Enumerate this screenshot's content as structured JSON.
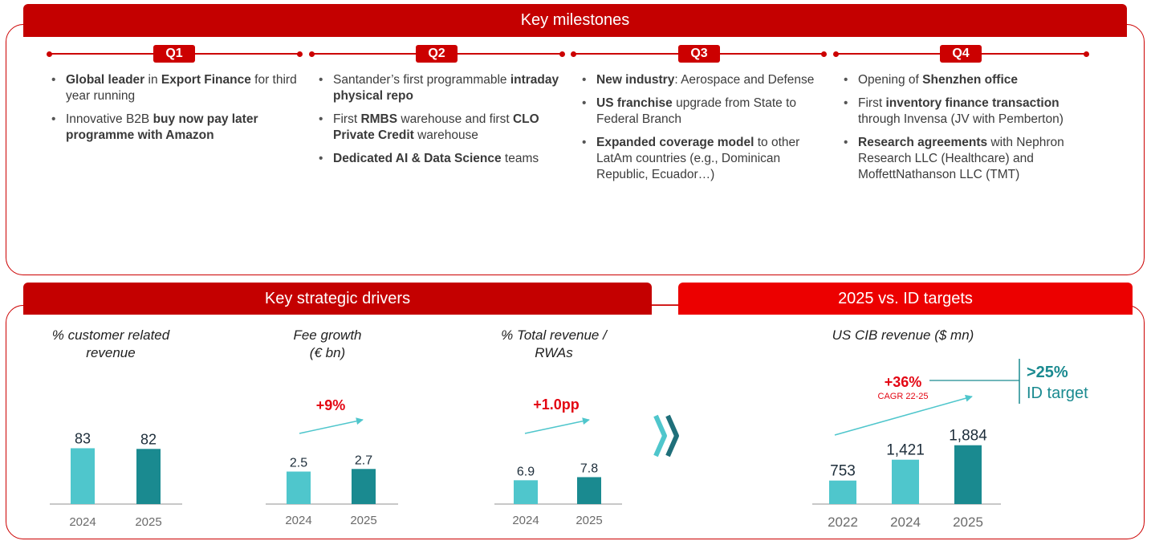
{
  "milestones": {
    "title": "Key milestones",
    "quarters": [
      {
        "label": "Q1",
        "items": [
          [
            {
              "t": "Global leader",
              "b": true
            },
            {
              "t": " in "
            },
            {
              "t": "Export Finance",
              "b": true
            },
            {
              "t": " for third year running"
            }
          ],
          [
            {
              "t": "Innovative B2B "
            },
            {
              "t": "buy now pay later programme with Amazon",
              "b": true
            }
          ]
        ]
      },
      {
        "label": "Q2",
        "items": [
          [
            {
              "t": "Santander’s first programmable "
            },
            {
              "t": "intraday physical repo",
              "b": true
            }
          ],
          [
            {
              "t": "First "
            },
            {
              "t": "RMBS",
              "b": true
            },
            {
              "t": " warehouse and first "
            },
            {
              "t": "CLO Private Credit",
              "b": true
            },
            {
              "t": " warehouse"
            }
          ],
          [
            {
              "t": "Dedicated AI & Data Science",
              "b": true
            },
            {
              "t": " teams"
            }
          ]
        ]
      },
      {
        "label": "Q3",
        "items": [
          [
            {
              "t": "New industry",
              "b": true
            },
            {
              "t": ": Aerospace and Defense"
            }
          ],
          [
            {
              "t": "US franchise",
              "b": true
            },
            {
              "t": " upgrade from State to Federal Branch"
            }
          ],
          [
            {
              "t": "Expanded coverage model",
              "b": true
            },
            {
              "t": " to other LatAm countries (e.g., Dominican Republic, Ecuador…)"
            }
          ]
        ]
      },
      {
        "label": "Q4",
        "items": [
          [
            {
              "t": "Opening of "
            },
            {
              "t": "Shenzhen office",
              "b": true
            }
          ],
          [
            {
              "t": "First "
            },
            {
              "t": "inventory finance transaction",
              "b": true
            },
            {
              "t": " through Invensa (JV with Pemberton)"
            }
          ],
          [
            {
              "t": "Research agreements",
              "b": true
            },
            {
              "t": " with Nephron Research LLC (Healthcare) and MoffettNathanson LLC (TMT)"
            }
          ]
        ]
      }
    ]
  },
  "drivers": {
    "title": "Key strategic drivers"
  },
  "targets": {
    "title": "2025 vs. ID targets"
  },
  "colors": {
    "red": "#cc0000",
    "brightRed": "#ec0000",
    "lightTeal": "#4fc6cc",
    "darkTeal": "#1a8a90",
    "arrowTeal": "#4fc6cc",
    "growthRed": "#e30613",
    "targetTeal": "#1a8a90",
    "axis": "#b5b5b5"
  },
  "chart_data": [
    {
      "type": "bar",
      "title": "% customer related revenue",
      "title_lines": [
        "% customer related",
        "revenue"
      ],
      "categories": [
        "2024",
        "2025"
      ],
      "values": [
        83,
        82
      ],
      "value_labels": [
        "83",
        "82"
      ],
      "ylim": [
        0,
        100
      ]
    },
    {
      "type": "bar",
      "title": "Fee growth (€ bn)",
      "title_lines": [
        "Fee growth",
        "(€ bn)"
      ],
      "categories": [
        "2024",
        "2025"
      ],
      "values": [
        2.5,
        2.7
      ],
      "value_labels": [
        "2.5",
        "2.7"
      ],
      "ylim": [
        0,
        3.6
      ],
      "growth_label": "+9%"
    },
    {
      "type": "bar",
      "title": "% Total revenue / RWAs",
      "title_lines": [
        "% Total revenue /",
        "RWAs"
      ],
      "categories": [
        "2024",
        "2025"
      ],
      "values": [
        6.9,
        7.8
      ],
      "value_labels": [
        "6.9",
        "7.8"
      ],
      "ylim": [
        0,
        10.4
      ],
      "growth_label": "+1.0pp"
    },
    {
      "type": "bar",
      "title": "US CIB revenue ($ mn)",
      "title_lines": [
        "US CIB revenue ($ mn)"
      ],
      "categories": [
        "2022",
        "2024",
        "2025"
      ],
      "values": [
        753,
        1421,
        1884
      ],
      "value_labels": [
        "753",
        "1,421",
        "1,884"
      ],
      "ylim": [
        0,
        2410
      ],
      "growth_label": "+36%",
      "growth_sub": "CAGR 22-25",
      "target_value": ">25%",
      "target_label": "ID target"
    }
  ]
}
